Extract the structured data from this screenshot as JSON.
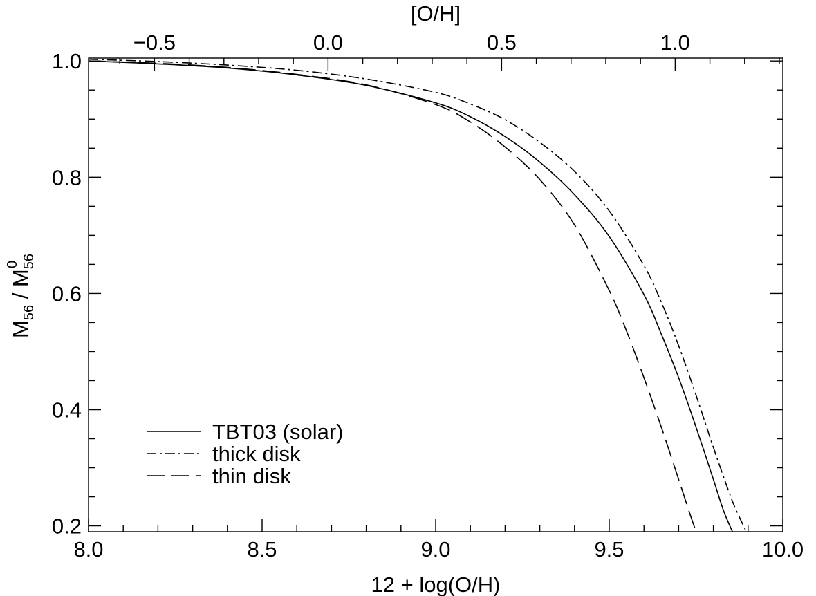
{
  "chart_data": {
    "type": "line",
    "title": "",
    "xlabel": "12 + log(O/H)",
    "x2label": "[O/H]",
    "ylabel": {
      "prefix": "M",
      "sub": "56",
      "middle": " / M",
      "sub2": "56",
      "sup2": "0"
    },
    "xlim": [
      8.0,
      10.0
    ],
    "ylim": [
      0.19,
      1.005
    ],
    "x_ticks": [
      8.0,
      8.5,
      9.0,
      9.5,
      10.0
    ],
    "x_tick_labels": [
      "8.0",
      "8.5",
      "9.0",
      "9.5",
      "10.0"
    ],
    "x_minor_step": 0.1,
    "y_ticks": [
      0.2,
      0.4,
      0.6,
      0.8,
      1.0
    ],
    "y_tick_labels": [
      "0.2",
      "0.4",
      "0.6",
      "0.8",
      "1.0"
    ],
    "y_minor_step": 0.05,
    "x2_offset": 8.69,
    "x2_ticks": [
      -0.5,
      0.0,
      0.5,
      1.0
    ],
    "x2_tick_labels": [
      "−0.5",
      "0.0",
      "0.5",
      "1.0"
    ],
    "x2_minor_step": 0.1,
    "grid": false,
    "legend_position": "bottom-left",
    "series": [
      {
        "name": "TBT03 (solar)",
        "style": "solid",
        "color": "#000000",
        "x": [
          8.0,
          8.2,
          8.4,
          8.6,
          8.8,
          9.0,
          9.1,
          9.2,
          9.3,
          9.4,
          9.5,
          9.6,
          9.65,
          9.7,
          9.75,
          9.8,
          9.83,
          9.855
        ],
        "y": [
          1.0,
          0.995,
          0.988,
          0.976,
          0.958,
          0.928,
          0.904,
          0.87,
          0.826,
          0.77,
          0.698,
          0.598,
          0.53,
          0.455,
          0.37,
          0.28,
          0.225,
          0.19
        ]
      },
      {
        "name": "thick disk",
        "style": "dashdot",
        "color": "#000000",
        "x": [
          8.0,
          8.2,
          8.4,
          8.6,
          8.8,
          9.0,
          9.1,
          9.2,
          9.3,
          9.4,
          9.5,
          9.6,
          9.65,
          9.7,
          9.75,
          9.8,
          9.85,
          9.875,
          9.895
        ],
        "y": [
          1.003,
          0.999,
          0.993,
          0.984,
          0.969,
          0.946,
          0.926,
          0.899,
          0.86,
          0.81,
          0.742,
          0.648,
          0.585,
          0.51,
          0.425,
          0.335,
          0.25,
          0.215,
          0.19
        ]
      },
      {
        "name": "thin disk",
        "style": "longdash",
        "color": "#000000",
        "x": [
          8.0,
          8.2,
          8.4,
          8.6,
          8.8,
          9.0,
          9.1,
          9.2,
          9.3,
          9.4,
          9.5,
          9.55,
          9.6,
          9.65,
          9.7,
          9.73,
          9.75
        ],
        "y": [
          1.0,
          0.996,
          0.989,
          0.977,
          0.959,
          0.925,
          0.895,
          0.852,
          0.796,
          0.718,
          0.605,
          0.535,
          0.455,
          0.37,
          0.28,
          0.225,
          0.19
        ]
      }
    ]
  }
}
